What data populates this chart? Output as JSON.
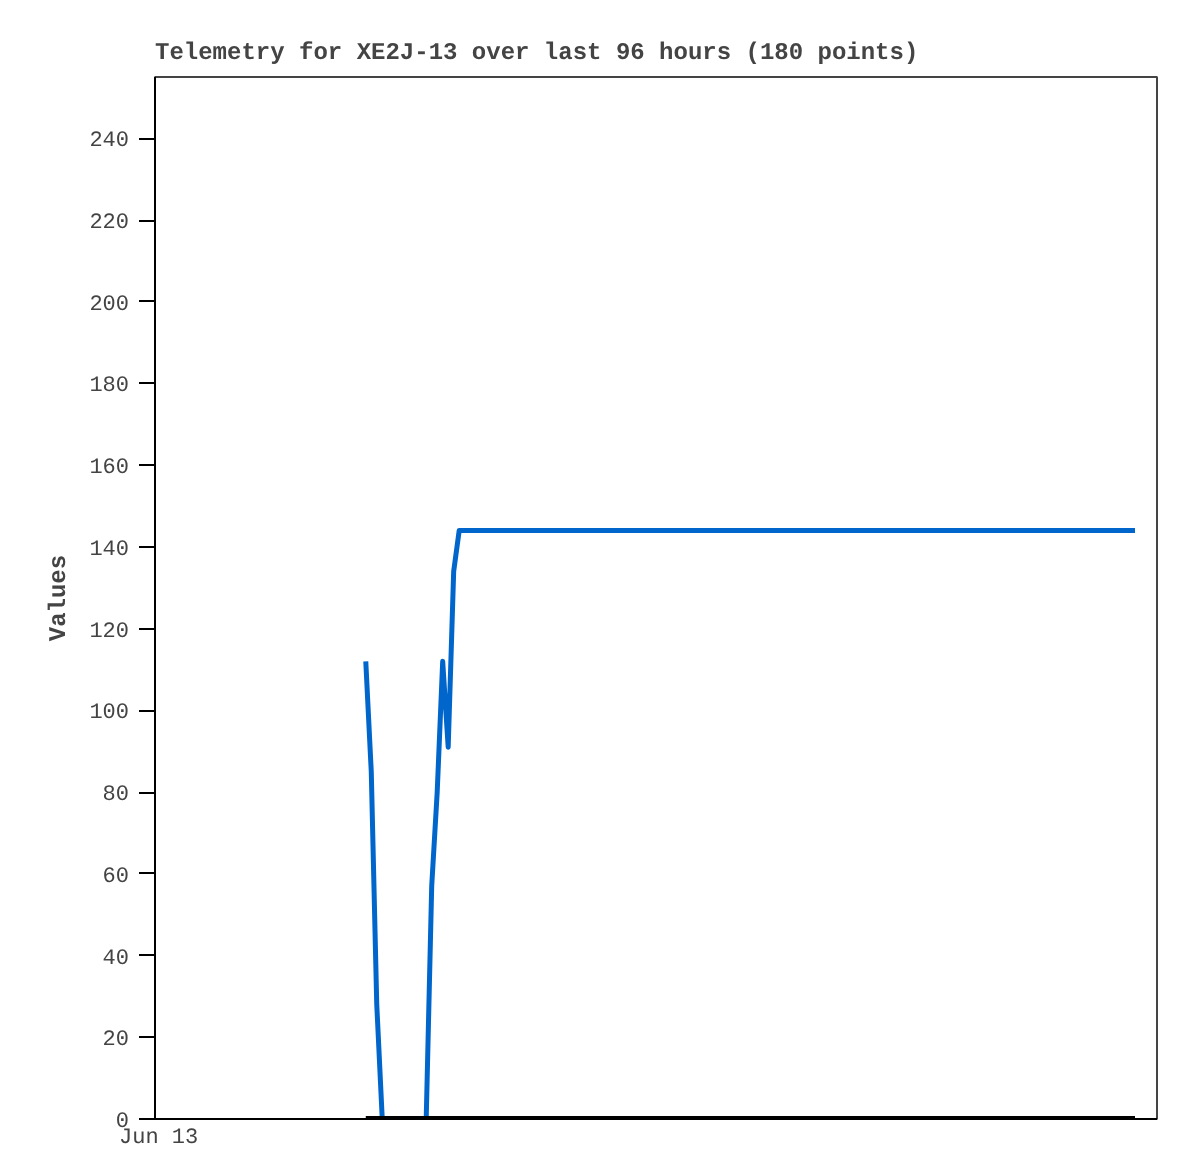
{
  "chart_data": {
    "type": "line",
    "title": "Telemetry for XE2J-13 over last 96 hours (180 points)",
    "ylabel": "Values",
    "annotations": [
      "Jun 13"
    ],
    "categories": [
      null,
      null,
      null,
      null,
      null,
      null,
      null,
      null,
      null,
      null,
      null,
      null,
      null,
      null,
      null,
      null,
      null,
      null,
      null,
      null,
      null,
      null,
      null,
      null,
      null,
      null,
      null,
      null,
      null,
      null,
      null,
      null,
      null,
      null,
      null,
      null,
      null,
      null,
      null,
      null,
      null,
      null,
      null,
      null,
      null,
      null,
      null,
      null,
      null,
      null,
      null,
      null,
      null,
      null,
      null,
      null,
      null,
      null,
      null,
      null,
      null,
      null,
      null,
      null,
      null,
      null,
      null,
      null,
      null,
      null,
      null,
      null,
      null,
      null,
      null,
      null,
      null,
      null,
      null,
      null,
      null,
      null,
      null,
      null,
      null,
      null,
      null,
      null,
      null,
      null,
      null,
      null,
      null,
      null,
      null,
      null,
      null,
      null,
      null,
      null,
      null,
      null,
      null,
      null,
      null,
      null,
      null,
      null,
      null,
      null,
      null,
      null,
      null,
      null,
      null,
      null,
      null,
      null,
      null,
      null,
      null,
      null,
      null,
      null,
      null,
      null,
      null,
      null,
      null,
      null,
      null,
      null,
      null,
      null,
      null,
      null,
      null,
      null,
      null,
      null,
      null
    ],
    "ylim": [
      0,
      255
    ],
    "yticks": [
      0,
      20,
      40,
      60,
      80,
      100,
      120,
      140,
      160,
      180,
      200,
      220,
      240
    ],
    "grid": false,
    "marker": "none",
    "line_style": "solid",
    "series": [
      {
        "color": "#0066cc",
        "values": [
          112,
          85,
          28,
          0,
          0,
          0,
          0,
          0,
          0,
          0,
          0,
          0,
          57,
          80,
          112,
          91,
          134,
          144,
          144,
          144,
          144,
          144,
          144,
          144,
          144,
          144,
          144,
          144,
          144,
          144,
          144,
          144,
          144,
          144,
          144,
          144,
          144,
          144,
          144,
          144,
          144,
          144,
          144,
          144,
          144,
          144,
          144,
          144,
          144,
          144,
          144,
          144,
          144,
          144,
          144,
          144,
          144,
          144,
          144,
          144,
          144,
          144,
          144,
          144,
          144,
          144,
          144,
          144,
          144,
          144,
          144,
          144,
          144,
          144,
          144,
          144,
          144,
          144,
          144,
          144,
          144,
          144,
          144,
          144,
          144,
          144,
          144,
          144,
          144,
          144,
          144,
          144,
          144,
          144,
          144,
          144,
          144,
          144,
          144,
          144,
          144,
          144,
          144,
          144,
          144,
          144,
          144,
          144,
          144,
          144,
          144,
          144,
          144,
          144,
          144,
          144,
          144,
          144,
          144,
          144,
          144,
          144,
          144,
          144,
          144,
          144,
          144,
          144,
          144,
          144,
          144,
          144,
          144,
          144,
          144,
          144,
          144,
          144,
          144,
          144,
          144
        ]
      },
      {
        "color": "#000000",
        "values": [
          0,
          0,
          0,
          0,
          0,
          0,
          0,
          0,
          0,
          0,
          0,
          0,
          0,
          0,
          0,
          0,
          0,
          0,
          0,
          0,
          0,
          0,
          0,
          0,
          0,
          0,
          0,
          0,
          0,
          0,
          0,
          0,
          0,
          0,
          0,
          0,
          0,
          0,
          0,
          0,
          0,
          0,
          0,
          0,
          0,
          0,
          0,
          0,
          0,
          0,
          0,
          0,
          0,
          0,
          0,
          0,
          0,
          0,
          0,
          0,
          0,
          0,
          0,
          0,
          0,
          0,
          0,
          0,
          0,
          0,
          0,
          0,
          0,
          0,
          0,
          0,
          0,
          0,
          0,
          0,
          0,
          0,
          0,
          0,
          0,
          0,
          0,
          0,
          0,
          0,
          0,
          0,
          0,
          0,
          0,
          0,
          0,
          0,
          0,
          0,
          0,
          0,
          0,
          0,
          0,
          0,
          0,
          0,
          0,
          0,
          0,
          0,
          0,
          0,
          0,
          0,
          0,
          0,
          0,
          0,
          0,
          0,
          0,
          0,
          0,
          0,
          0,
          0,
          0,
          0,
          0,
          0,
          0,
          0,
          0,
          0,
          0,
          0,
          0,
          0,
          0
        ]
      }
    ]
  }
}
